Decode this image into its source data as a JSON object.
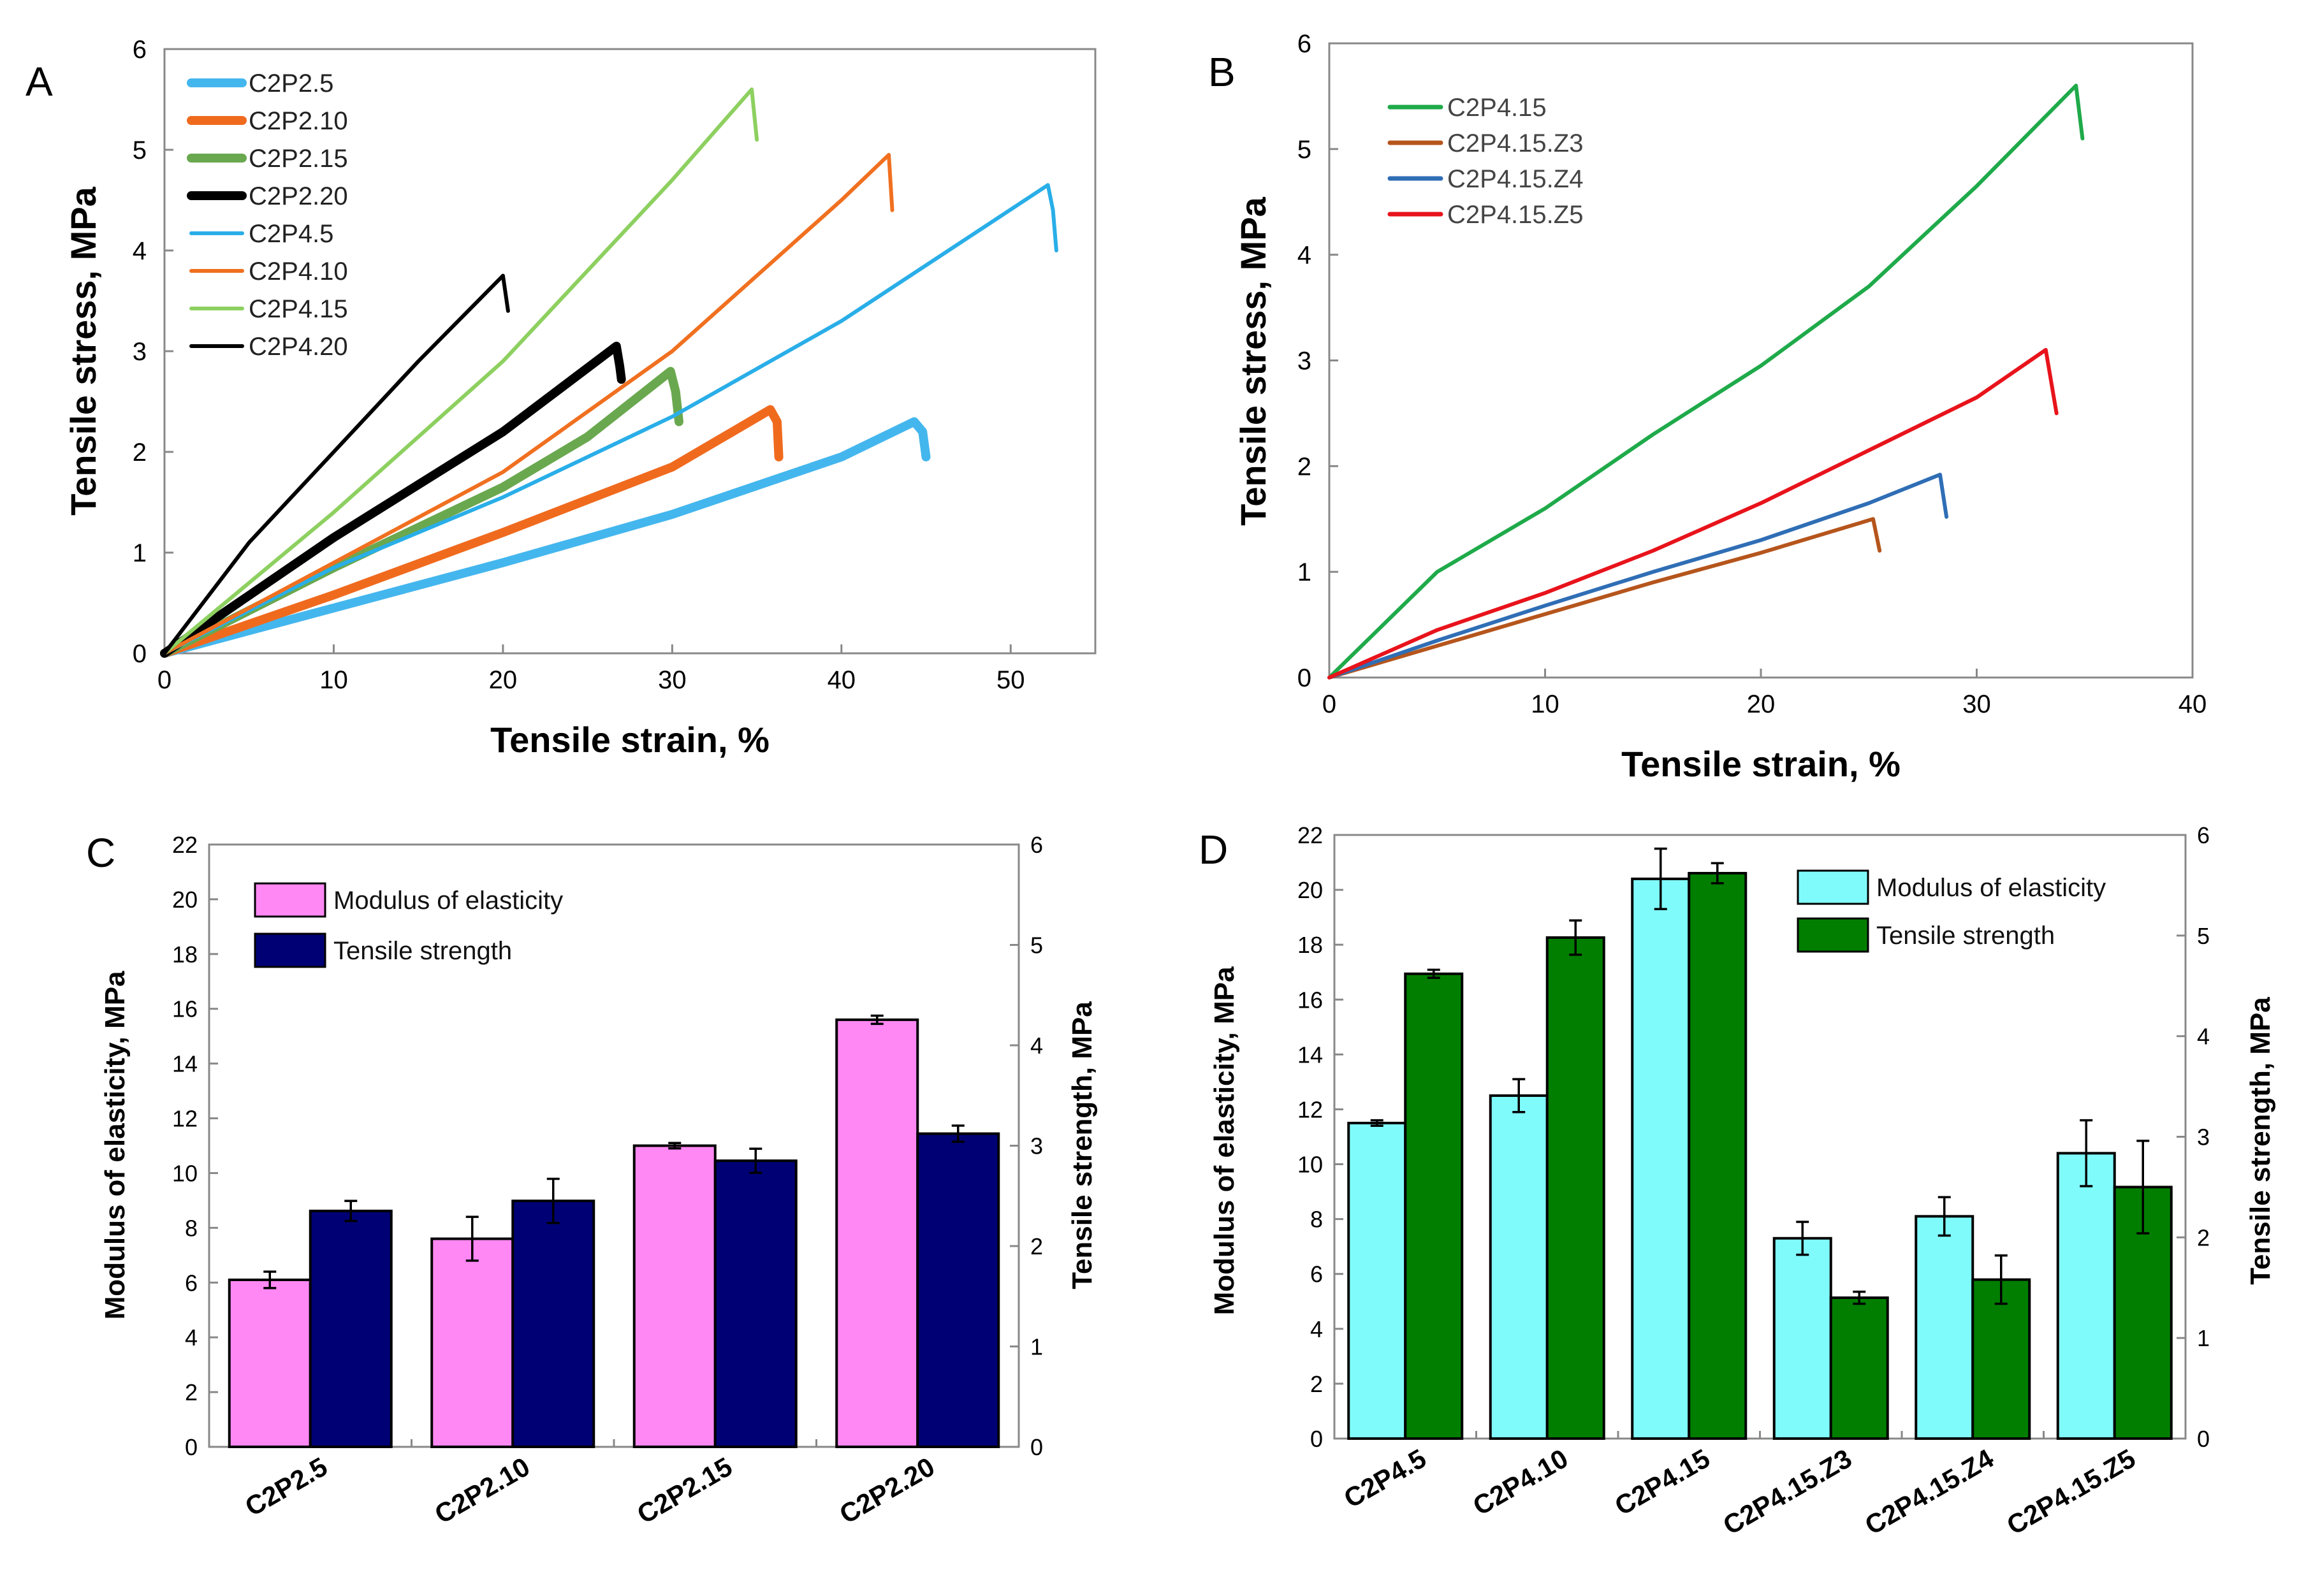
{
  "chart_data": [
    {
      "panel": "A",
      "type": "line",
      "xlabel": "Tensile strain, %",
      "ylabel": "Tensile stress, MPa",
      "xlim": [
        0,
        55
      ],
      "ylim": [
        0,
        6
      ],
      "xticks": [
        0,
        10,
        20,
        30,
        40,
        50
      ],
      "yticks": [
        0,
        1,
        2,
        3,
        4,
        5,
        6
      ],
      "grid": false,
      "legend_position": "top-left",
      "series": [
        {
          "name": "C2P2.5",
          "color": "#44b6ee",
          "style": "thick",
          "x": [
            0,
            10,
            20,
            30,
            40,
            44.3,
            44.8,
            45.0
          ],
          "y": [
            0,
            0.45,
            0.9,
            1.38,
            1.95,
            2.3,
            2.2,
            1.95
          ]
        },
        {
          "name": "C2P2.10",
          "color": "#f06a1e",
          "style": "thick",
          "x": [
            0,
            10,
            20,
            30,
            35.8,
            36.2,
            36.3
          ],
          "y": [
            0,
            0.58,
            1.2,
            1.85,
            2.42,
            2.3,
            1.95
          ]
        },
        {
          "name": "C2P2.15",
          "color": "#6aa84f",
          "style": "thick",
          "x": [
            0,
            10,
            20,
            25,
            29.9,
            30.2,
            30.4
          ],
          "y": [
            0,
            0.85,
            1.65,
            2.15,
            2.8,
            2.6,
            2.3
          ]
        },
        {
          "name": "C2P2.20",
          "color": "#000000",
          "style": "thick",
          "x": [
            0,
            10,
            20,
            26.7,
            26.9,
            27.0
          ],
          "y": [
            0,
            1.15,
            2.2,
            3.05,
            2.85,
            2.72
          ]
        },
        {
          "name": "C2P4.5",
          "color": "#29aee8",
          "style": "thin",
          "x": [
            0,
            10,
            20,
            30,
            40,
            52.2,
            52.5,
            52.7
          ],
          "y": [
            0,
            0.85,
            1.55,
            2.35,
            3.3,
            4.65,
            4.4,
            4.0
          ]
        },
        {
          "name": "C2P4.10",
          "color": "#f07020",
          "style": "thin",
          "x": [
            0,
            10,
            20,
            30,
            40,
            42.8,
            43.0
          ],
          "y": [
            0,
            0.9,
            1.8,
            3.0,
            4.5,
            4.95,
            4.4
          ]
        },
        {
          "name": "C2P4.15",
          "color": "#8dd060",
          "style": "thin",
          "x": [
            0,
            10,
            20,
            30,
            34.7,
            35.0
          ],
          "y": [
            0,
            1.4,
            2.9,
            4.7,
            5.6,
            5.1
          ]
        },
        {
          "name": "C2P4.20",
          "color": "#000000",
          "style": "thin",
          "x": [
            0,
            5,
            10,
            15,
            20,
            20.3
          ],
          "y": [
            0,
            1.1,
            2.0,
            2.9,
            3.75,
            3.4
          ]
        }
      ]
    },
    {
      "panel": "B",
      "type": "line",
      "xlabel": "Tensile strain, %",
      "ylabel": "Tensile stress, MPa",
      "xlim": [
        0,
        40
      ],
      "ylim": [
        0,
        6
      ],
      "xticks": [
        0,
        10,
        20,
        30,
        40
      ],
      "yticks": [
        0,
        1,
        2,
        3,
        4,
        5,
        6
      ],
      "grid": false,
      "legend_position": "top-left",
      "series": [
        {
          "name": "C2P4.15",
          "color": "#1faa4a",
          "x": [
            0,
            5,
            10,
            15,
            20,
            25,
            30,
            34.6,
            34.9
          ],
          "y": [
            0,
            1.0,
            1.6,
            2.3,
            2.95,
            3.7,
            4.65,
            5.6,
            5.1
          ]
        },
        {
          "name": "C2P4.15.Z3",
          "color": "#b5551c",
          "x": [
            0,
            5,
            10,
            15,
            20,
            25.2,
            25.5
          ],
          "y": [
            0,
            0.3,
            0.6,
            0.9,
            1.18,
            1.5,
            1.2
          ]
        },
        {
          "name": "C2P4.15.Z4",
          "color": "#2f6eb5",
          "x": [
            0,
            5,
            10,
            15,
            20,
            25,
            28.3,
            28.6
          ],
          "y": [
            0,
            0.35,
            0.68,
            1.0,
            1.3,
            1.65,
            1.92,
            1.52
          ]
        },
        {
          "name": "C2P4.15.Z5",
          "color": "#e8131b",
          "x": [
            0,
            5,
            10,
            15,
            20,
            25,
            30,
            33.2,
            33.7
          ],
          "y": [
            0,
            0.45,
            0.8,
            1.2,
            1.65,
            2.15,
            2.65,
            3.1,
            2.5
          ]
        }
      ]
    },
    {
      "panel": "C",
      "type": "bar",
      "categories": [
        "C2P2.5",
        "C2P2.10",
        "C2P2.15",
        "C2P2.20"
      ],
      "ylabel": "Modulus of elasticity, MPa",
      "y2label": "Tensile strength, MPa",
      "ylim": [
        0,
        22
      ],
      "y2lim": [
        0,
        6
      ],
      "yticks": [
        0,
        2,
        4,
        6,
        8,
        10,
        12,
        14,
        16,
        18,
        20,
        22
      ],
      "y2ticks": [
        0,
        1,
        2,
        3,
        4,
        5,
        6
      ],
      "grid": false,
      "legend_position": "top-left",
      "series": [
        {
          "name": "Modulus of elasticity",
          "color": "#ff88f4",
          "axis": "left",
          "values": [
            6.1,
            7.6,
            11.0,
            15.6
          ],
          "errors": [
            0.3,
            0.8,
            0.1,
            0.15
          ]
        },
        {
          "name": "Tensile strength",
          "color": "#000075",
          "axis": "right",
          "values": [
            2.35,
            2.45,
            2.85,
            3.12
          ],
          "errors": [
            0.1,
            0.22,
            0.12,
            0.08
          ]
        }
      ]
    },
    {
      "panel": "D",
      "type": "bar",
      "categories": [
        "C2P4.5",
        "C2P4.10",
        "C2P4.15",
        "C2P4.15.Z3",
        "C2P4.15.Z4",
        "C2P4.15.Z5"
      ],
      "ylabel": "Modulus of elasticity, MPa",
      "y2label": "Tensile strength, MPa",
      "ylim": [
        0,
        22
      ],
      "y2lim": [
        0,
        6
      ],
      "yticks": [
        0,
        2,
        4,
        6,
        8,
        10,
        12,
        14,
        16,
        18,
        20,
        22
      ],
      "y2ticks": [
        0,
        1,
        2,
        3,
        4,
        5,
        6
      ],
      "grid": false,
      "legend_position": "top-right",
      "series": [
        {
          "name": "Modulus of elasticity",
          "color": "#80fbfc",
          "axis": "left",
          "values": [
            11.5,
            12.5,
            20.4,
            7.3,
            8.1,
            10.4
          ],
          "errors": [
            0.1,
            0.6,
            1.1,
            0.6,
            0.7,
            1.2
          ]
        },
        {
          "name": "Tensile strength",
          "color": "#017e00",
          "axis": "right",
          "values": [
            4.62,
            4.98,
            5.62,
            1.4,
            1.58,
            2.5
          ],
          "errors": [
            0.04,
            0.17,
            0.1,
            0.06,
            0.24,
            0.46
          ]
        }
      ]
    }
  ]
}
